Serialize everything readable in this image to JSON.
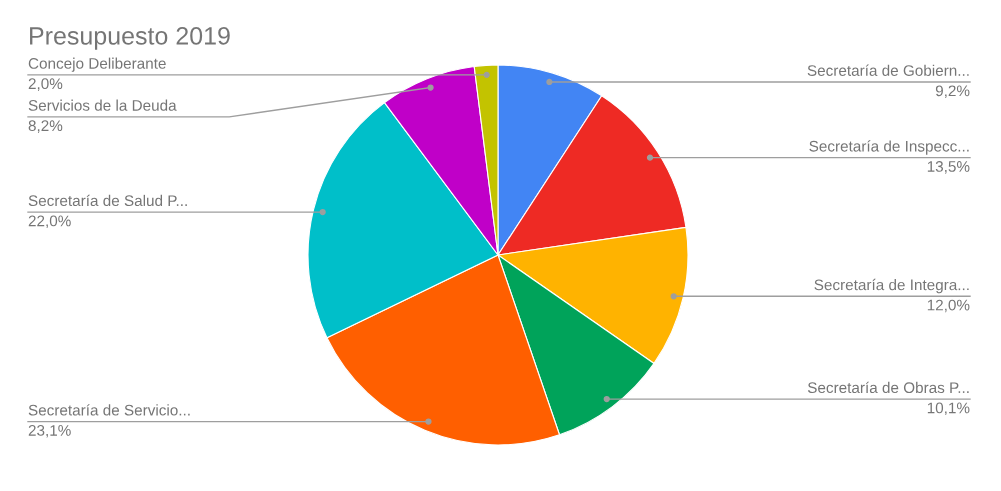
{
  "chart_data": {
    "type": "pie",
    "title": "Presupuesto 2019",
    "categories": [
      "Secretaría de Gobiern...",
      "Secretaría de Inspecc...",
      "Secretaría de Integra...",
      "Secretaría de Obras P...",
      "Secretaría de Servicio...",
      "Secretaría de Salud P...",
      "Servicios de la Deuda",
      "Concejo Deliberante"
    ],
    "values": [
      9.2,
      13.5,
      12.0,
      10.1,
      23.1,
      22.0,
      8.2,
      2.0
    ],
    "value_labels": [
      "9,2%",
      "13,5%",
      "12,0%",
      "10,1%",
      "23,1%",
      "22,0%",
      "8,2%",
      "2,0%"
    ],
    "colors": [
      "#4285f4",
      "#ee2a24",
      "#ffb300",
      "#00a35a",
      "#ff5f00",
      "#00bfc9",
      "#c000c8",
      "#c3c300"
    ]
  }
}
